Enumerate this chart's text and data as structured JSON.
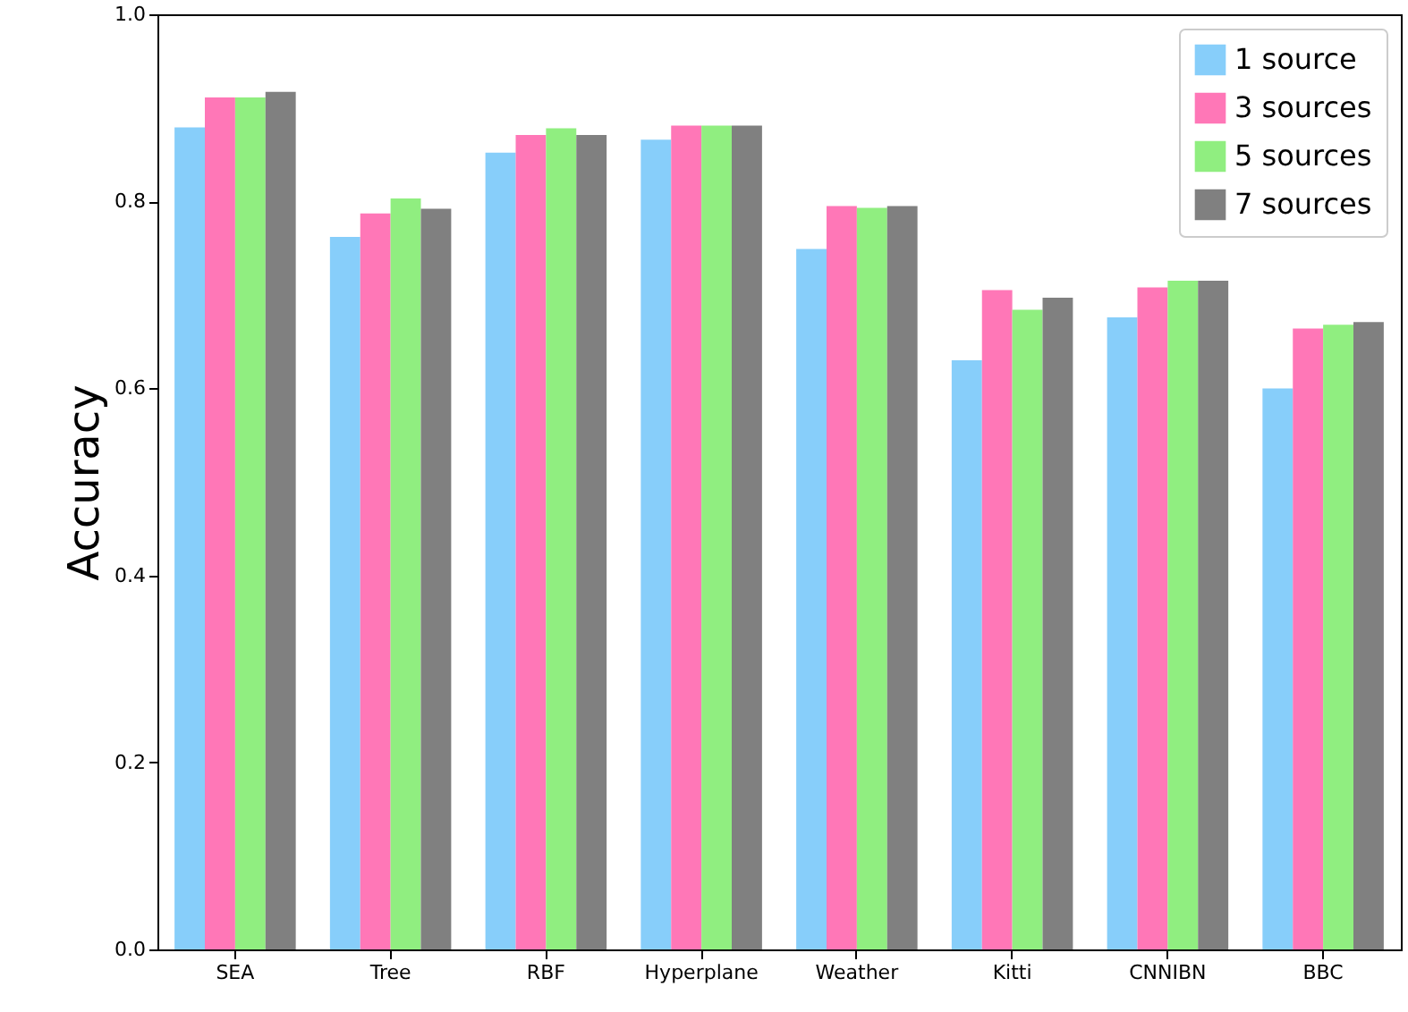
{
  "chart_data": {
    "type": "bar",
    "ylabel": "Accuracy",
    "categories": [
      "SEA",
      "Tree",
      "RBF",
      "Hyperplane",
      "Weather",
      "Kitti",
      "CNNIBN",
      "BBC"
    ],
    "series": [
      {
        "name": "1 source",
        "color": "#87cefa",
        "values": [
          0.879,
          0.762,
          0.852,
          0.866,
          0.749,
          0.63,
          0.676,
          0.6
        ]
      },
      {
        "name": "3 sources",
        "color": "#ff77b7",
        "values": [
          0.911,
          0.787,
          0.871,
          0.881,
          0.795,
          0.705,
          0.708,
          0.664
        ]
      },
      {
        "name": "5 sources",
        "color": "#90ee80",
        "values": [
          0.911,
          0.803,
          0.878,
          0.881,
          0.793,
          0.684,
          0.715,
          0.668
        ]
      },
      {
        "name": "7 sources",
        "color": "#808080",
        "values": [
          0.917,
          0.792,
          0.871,
          0.881,
          0.795,
          0.697,
          0.715,
          0.671
        ]
      }
    ],
    "ylim": [
      0,
      1
    ],
    "yticks": [
      {
        "value": 0,
        "label": "0.0"
      },
      {
        "value": 0.2,
        "label": "0.2"
      },
      {
        "value": 0.4,
        "label": "0.4"
      },
      {
        "value": 0.6,
        "label": "0.6"
      },
      {
        "value": 0.8,
        "label": "0.8"
      },
      {
        "value": 1,
        "label": "1.0"
      }
    ],
    "grid": false,
    "legend": "top right"
  }
}
